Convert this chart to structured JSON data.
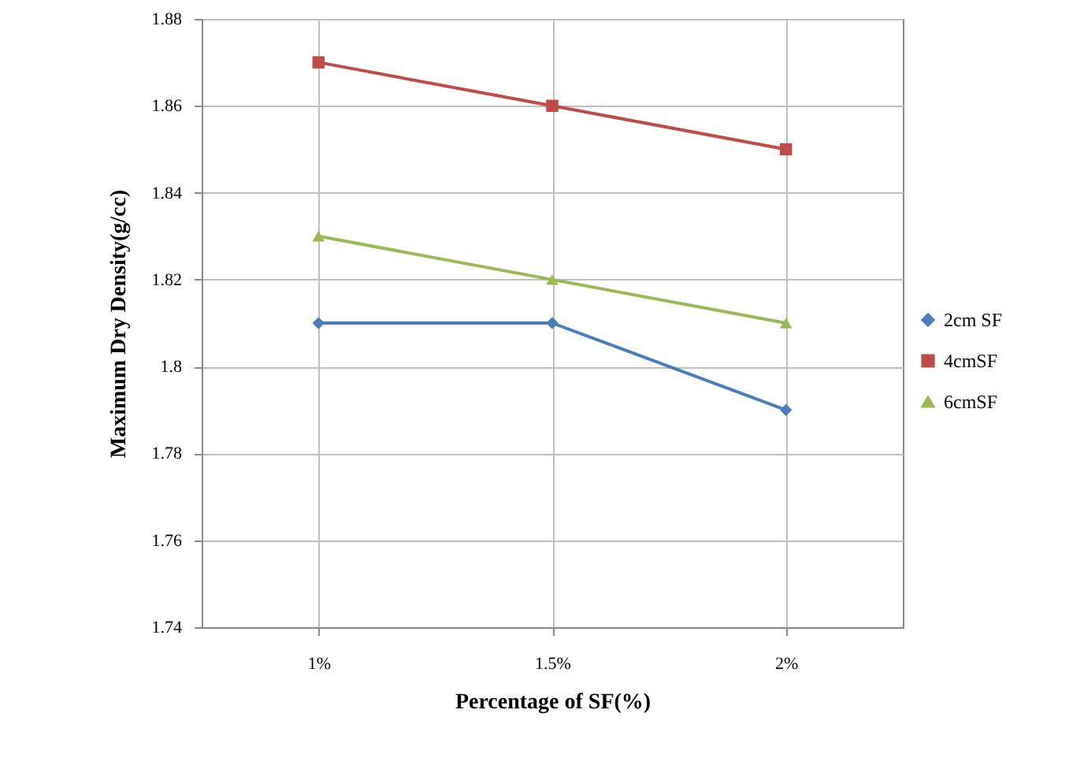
{
  "chart_data": {
    "type": "line",
    "xlabel": "Percentage of SF(%)",
    "ylabel": "Maximum Dry Density(g/cc)",
    "categories": [
      "1%",
      "1.5%",
      "2%"
    ],
    "series": [
      {
        "name": "2cm SF",
        "color": "#4a7ebb",
        "marker": "diamond",
        "values": [
          1.81,
          1.81,
          1.79
        ]
      },
      {
        "name": "4cmSF",
        "color": "#be4b48",
        "marker": "square",
        "values": [
          1.87,
          1.86,
          1.85
        ]
      },
      {
        "name": "6cmSF",
        "color": "#98b954",
        "marker": "triangle",
        "values": [
          1.83,
          1.82,
          1.81
        ]
      }
    ],
    "ylim": [
      1.74,
      1.88
    ],
    "yticks": [
      1.74,
      1.76,
      1.78,
      1.8,
      1.82,
      1.84,
      1.86,
      1.88
    ],
    "grid": true,
    "legend": "right",
    "line_style": "solid"
  }
}
